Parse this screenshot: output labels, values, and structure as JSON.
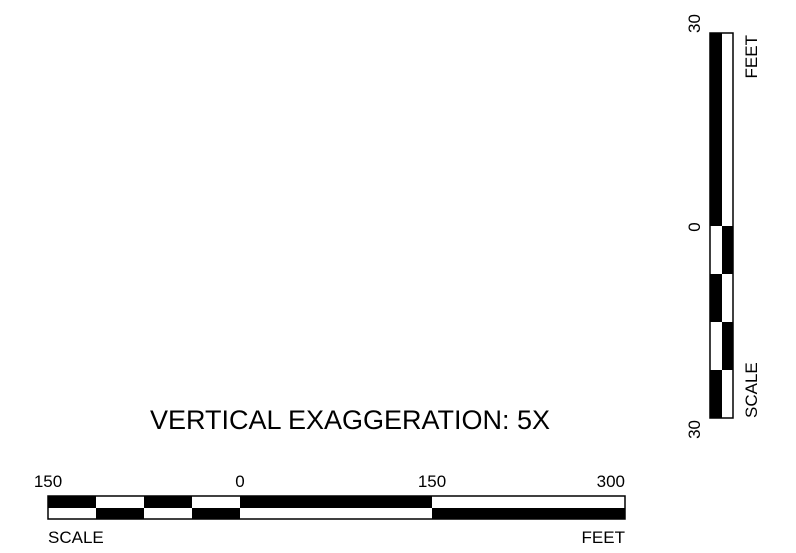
{
  "title": "VERTICAL EXAGGERATION: 5X",
  "horizontal_scale": {
    "tick_labels": [
      "150",
      "0",
      "150",
      "300"
    ],
    "label_left": "SCALE",
    "label_right": "FEET"
  },
  "vertical_scale": {
    "tick_labels": [
      "30",
      "0",
      "30"
    ],
    "label_top": "FEET",
    "label_bottom": "SCALE"
  },
  "colors": {
    "ink": "#000000",
    "paper": "#ffffff"
  }
}
